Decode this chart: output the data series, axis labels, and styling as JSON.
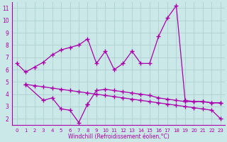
{
  "xlabel": "Windchill (Refroidissement éolien,°C)",
  "bg_color": "#cbe8e8",
  "grid_color": "#aacccc",
  "line_color": "#aa00aa",
  "s1_x": [
    0,
    1,
    2,
    3,
    4,
    5,
    6,
    7,
    8,
    9,
    10,
    11,
    12,
    13,
    14,
    15,
    16,
    17,
    18,
    19,
    20,
    21,
    22,
    23
  ],
  "s1_y": [
    6.5,
    5.8,
    6.2,
    6.6,
    7.2,
    7.6,
    7.8,
    8.0,
    8.5,
    6.5,
    7.5,
    6.0,
    6.5,
    7.5,
    6.5,
    6.5,
    8.7,
    10.2,
    11.2,
    3.5,
    3.4,
    3.4,
    3.3,
    3.3
  ],
  "s2_x": [
    1,
    3,
    4,
    5,
    6,
    7,
    8
  ],
  "s2_y": [
    4.8,
    3.5,
    3.7,
    2.8,
    2.7,
    1.7,
    3.2
  ],
  "s3_x": [
    1,
    2,
    3,
    4,
    5,
    6,
    7,
    8,
    9,
    10,
    11,
    12,
    13,
    14,
    15,
    16,
    17,
    18,
    19,
    20,
    21,
    22,
    23
  ],
  "s3_y": [
    4.8,
    4.7,
    4.6,
    4.5,
    4.4,
    4.3,
    4.2,
    4.1,
    4.0,
    3.9,
    3.8,
    3.7,
    3.6,
    3.5,
    3.4,
    3.3,
    3.2,
    3.1,
    3.0,
    2.9,
    2.8,
    2.7,
    2.0
  ],
  "s4_x": [
    8,
    9,
    10,
    11,
    12,
    13,
    14,
    15,
    16,
    17,
    18,
    19,
    20,
    21,
    22,
    23
  ],
  "s4_y": [
    3.2,
    4.3,
    4.4,
    4.3,
    4.2,
    4.1,
    4.0,
    3.9,
    3.7,
    3.6,
    3.5,
    3.4,
    3.4,
    3.4,
    3.3,
    3.3
  ],
  "ylim": [
    1.5,
    11.5
  ],
  "xlim": [
    -0.5,
    23.5
  ],
  "yticks": [
    2,
    3,
    4,
    5,
    6,
    7,
    8,
    9,
    10,
    11
  ],
  "xticks": [
    0,
    1,
    2,
    3,
    4,
    5,
    6,
    7,
    8,
    9,
    10,
    11,
    12,
    13,
    14,
    15,
    16,
    17,
    18,
    19,
    20,
    21,
    22,
    23
  ]
}
